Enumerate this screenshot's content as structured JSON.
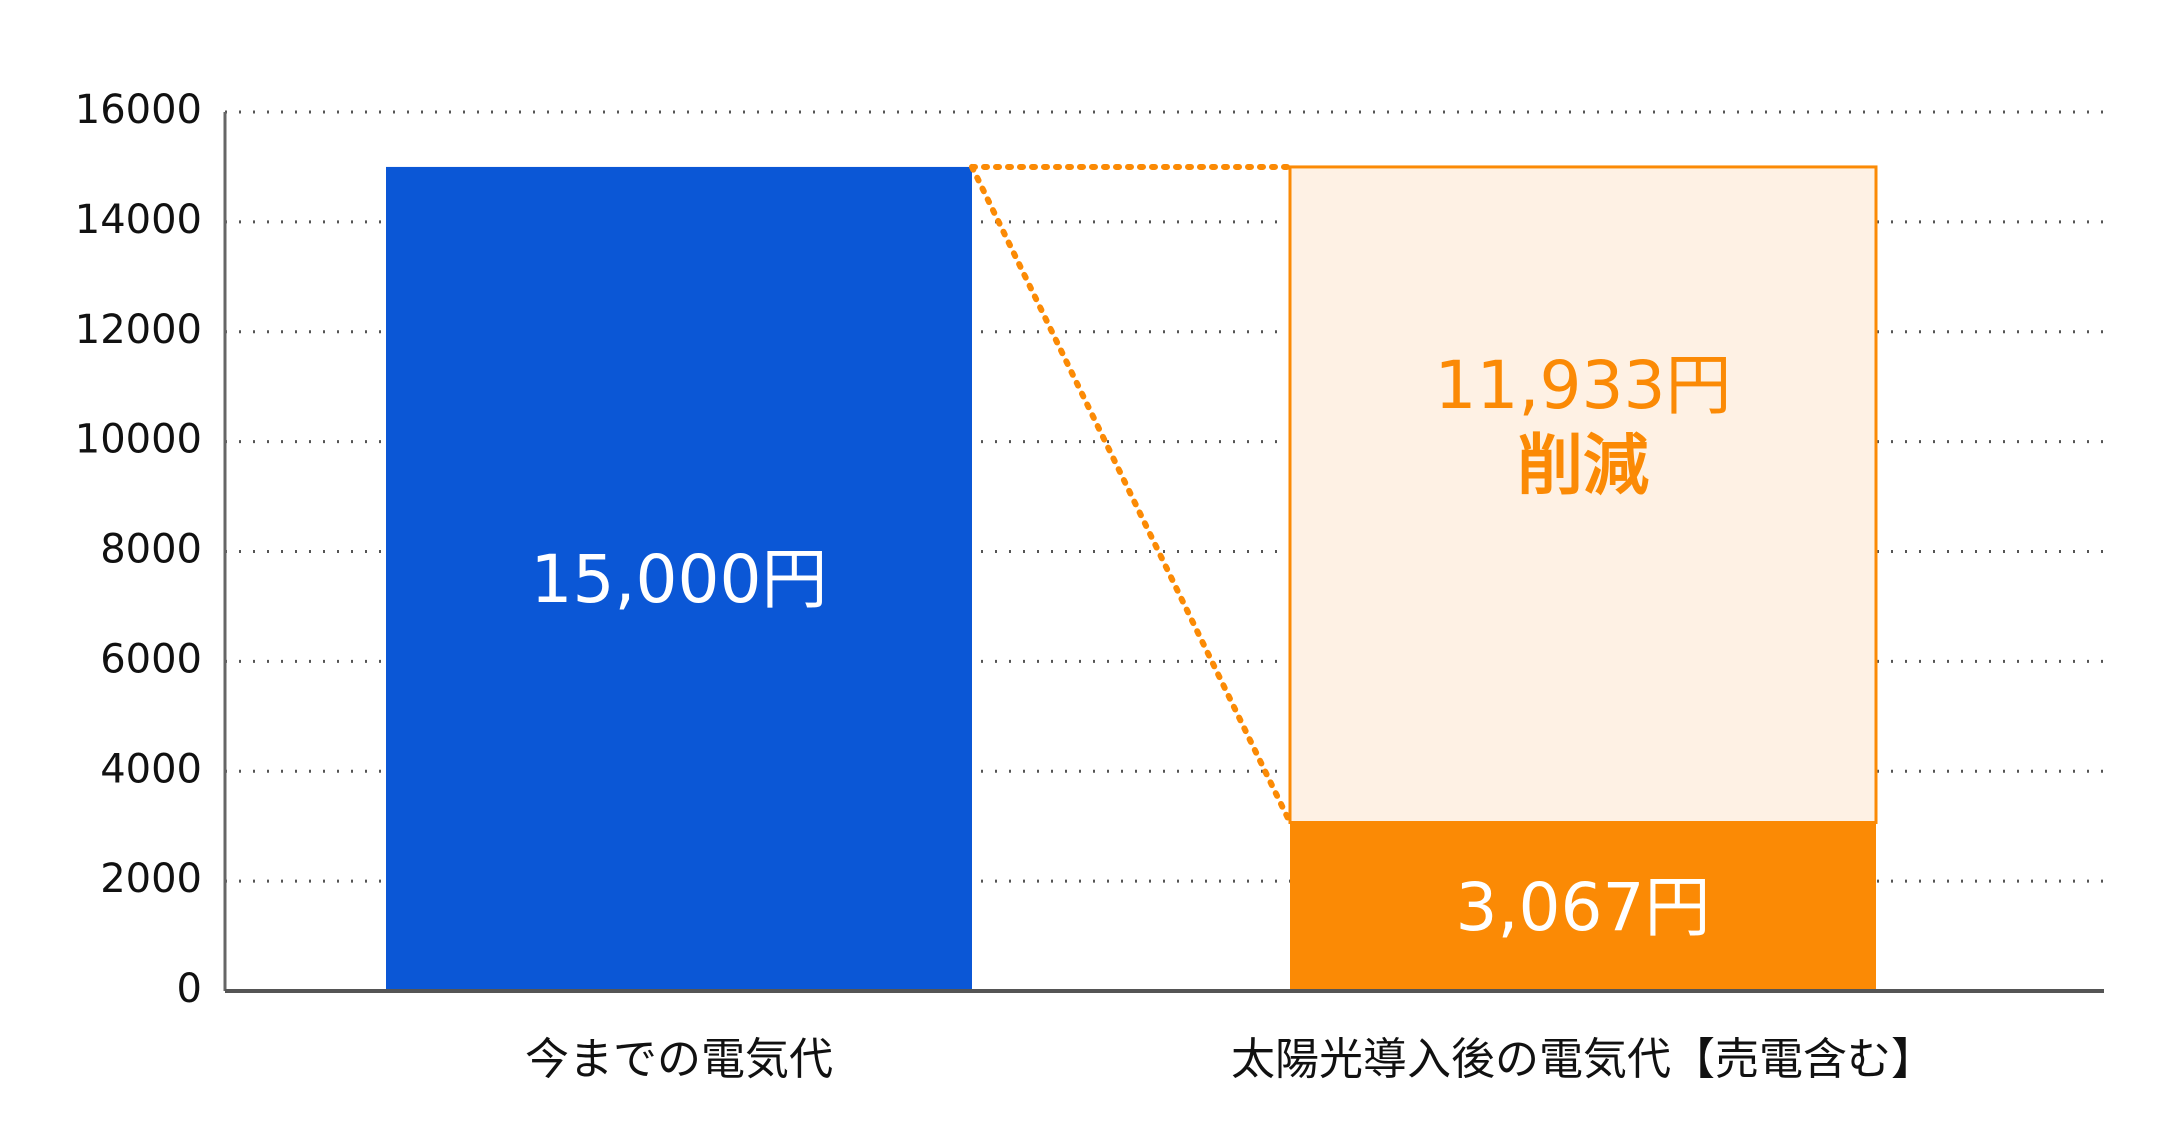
{
  "chart_data": {
    "type": "stacked-bar",
    "categories": [
      "今までの電気代",
      "太陽光導入後の電気代【売電含む】"
    ],
    "series": [
      {
        "color": "#0b57d6",
        "values": [
          15000,
          null
        ],
        "value_labels": [
          "15,000円",
          null
        ]
      },
      {
        "color": "#fb8a05",
        "values": [
          null,
          3067
        ],
        "value_labels": [
          null,
          "3,067円"
        ]
      },
      {
        "color": "#fef1e4",
        "edge_color": "#fb8a05",
        "label_color": "#fb8a05",
        "values": [
          null,
          11933
        ],
        "value_labels": [
          null,
          "11,933円"
        ]
      }
    ],
    "annotations": [
      "削減"
    ],
    "ylim": [
      0,
      16000
    ],
    "yticks": [
      0,
      2000,
      4000,
      6000,
      8000,
      10000,
      12000,
      14000,
      16000
    ],
    "grid": true
  }
}
